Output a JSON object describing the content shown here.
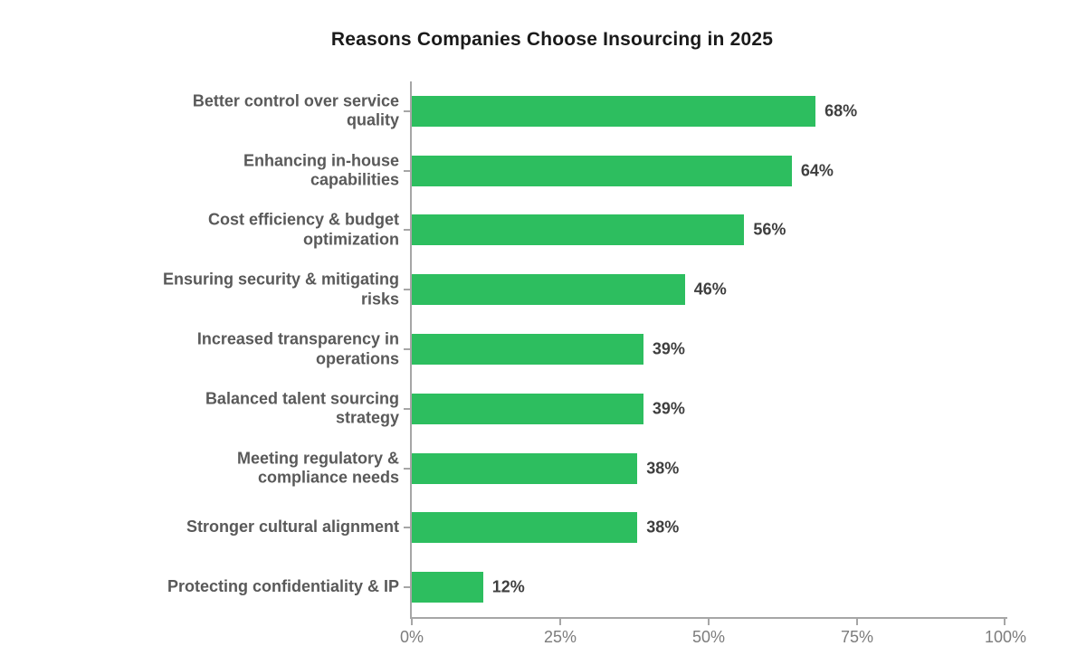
{
  "chart_data": {
    "type": "bar",
    "orientation": "horizontal",
    "title": "Reasons Companies Choose Insourcing in 2025",
    "categories": [
      "Better control over service\nquality",
      "Enhancing in-house\ncapabilities",
      "Cost efficiency & budget\noptimization",
      "Ensuring security & mitigating\nrisks",
      "Increased transparency in\noperations",
      "Balanced talent sourcing\nstrategy",
      "Meeting regulatory &\ncompliance needs",
      "Stronger cultural alignment",
      "Protecting confidentiality & IP"
    ],
    "values": [
      68,
      64,
      56,
      46,
      39,
      39,
      38,
      38,
      12
    ],
    "value_labels": [
      "68%",
      "64%",
      "56%",
      "46%",
      "39%",
      "39%",
      "38%",
      "38%",
      "12%"
    ],
    "xlabel": "",
    "ylabel": "",
    "xlim": [
      0,
      100
    ],
    "x_ticks": [
      {
        "value": 0,
        "label": "0%"
      },
      {
        "value": 25,
        "label": "25%"
      },
      {
        "value": 50,
        "label": "50%"
      },
      {
        "value": 75,
        "label": "75%"
      },
      {
        "value": 100,
        "label": "100%"
      }
    ],
    "grid": false,
    "legend": null
  },
  "colors": {
    "bar_green": "#2DBE5F",
    "category_label": "#595959",
    "value_label": "#3F3F3F",
    "axis": "#A6A6A6",
    "tick_label": "#7C7C7C",
    "title": "#1A1A1A",
    "background": "#FFFFFF"
  }
}
